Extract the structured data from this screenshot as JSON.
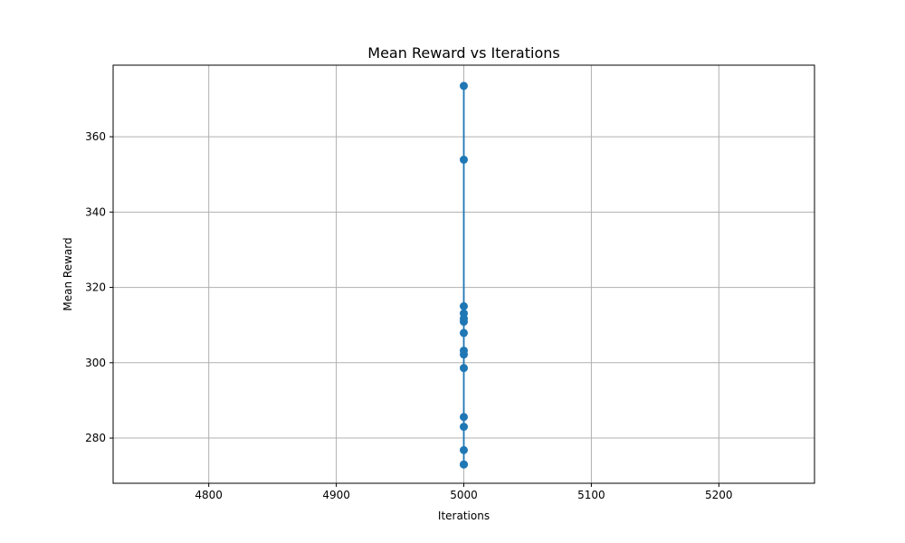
{
  "chart_data": {
    "type": "line",
    "title": "Mean Reward vs Iterations",
    "xlabel": "Iterations",
    "ylabel": "Mean Reward",
    "xlim": [
      4725,
      5275
    ],
    "ylim": [
      268,
      379
    ],
    "xticks": [
      4800,
      4900,
      5000,
      5100,
      5200
    ],
    "yticks": [
      280,
      300,
      320,
      340,
      360
    ],
    "grid": true,
    "line_color": "#1f77b4",
    "marker": "circle",
    "series": [
      {
        "x": [
          5000,
          5000,
          5000,
          5000,
          5000,
          5000,
          5000,
          5000,
          5000,
          5000,
          5000,
          5000,
          5000,
          5000,
          5000
        ],
        "y": [
          273.0,
          276.8,
          283.0,
          285.6,
          298.6,
          302.2,
          303.2,
          307.9,
          310.9,
          311.7,
          313.1,
          315.0,
          353.9,
          373.5,
          273.0
        ]
      }
    ]
  }
}
